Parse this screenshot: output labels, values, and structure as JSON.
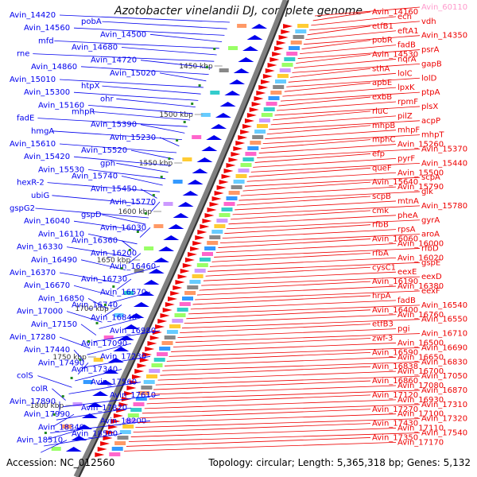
{
  "title": "Azotobacter vinelandii DJ, complete genome",
  "footer": {
    "accession_label": "Accession:",
    "accession_value": "NC_012560",
    "topology_label": "Topology:",
    "topology_value": "circular",
    "length_label": "Length:",
    "length_value": "5,365,318 bp",
    "genes_label": "Genes:",
    "genes_value": "5,132"
  },
  "colors": {
    "left_strand": "#0000ee",
    "right_strand": "#ee0000",
    "backbone": "#808080",
    "tick_marker": "#228b22",
    "faded_label": "#ff99cc"
  },
  "scale_labels": [
    "1450 kbp",
    "1500 kbp",
    "1550 kbp",
    "1600 kbp",
    "1650 kbp",
    "1700 kbp",
    "1750 kbp",
    "1800 kbp"
  ],
  "left_genes": [
    "Avin_14420",
    "pobA",
    "Avin_14560",
    "Avin_14500",
    "mfd",
    "Avin_14680",
    "rne",
    "Avin_14720",
    "Avin_14860",
    "Avin_15020",
    "Avin_15010",
    "htpX",
    "Avin_15300",
    "ohr",
    "Avin_15160",
    "mhpR",
    "fadE",
    "Avin_15390",
    "hmgA",
    "Avin_15230",
    "Avin_15610",
    "Avin_15520",
    "Avin_15420",
    "gph",
    "Avin_15530",
    "Avin_15740",
    "hexR-2",
    "Avin_15450",
    "ubiG",
    "Avin_15770",
    "gspG2",
    "gspD",
    "Avin_16040",
    "Avin_16030",
    "Avin_16110",
    "Avin_16360",
    "Avin_16330",
    "Avin_16200",
    "Avin_16490",
    "Avin_16460",
    "Avin_16370",
    "Avin_16730",
    "Avin_16670",
    "Avin_16570",
    "Avin_16850",
    "Avin_16740",
    "Avin_17000",
    "Avin_16840",
    "Avin_17150",
    "Avin_16980",
    "Avin_17280",
    "Avin_17090",
    "Avin_17440",
    "Avin_17230",
    "Avin_17490",
    "Avin_17340",
    "colS",
    "Avin_17560",
    "colR",
    "Avin_17610",
    "Avin_17890",
    "Avin_17820",
    "Avin_17990",
    "Avin_18200",
    "Avin_18340",
    "Avin_18500",
    "Avin_18510"
  ],
  "right_genes": [
    "Avin_60110",
    "Avin_14160",
    "ech",
    "vdh",
    "etfB1",
    "eftA1",
    "Avin_14350",
    "pobR",
    "fadB",
    "psrA",
    "Avin_14530",
    "nqrA",
    "gapB",
    "sthA",
    "lolC",
    "lolD",
    "apbE",
    "lpxK",
    "ptpA",
    "exbB",
    "rpmF",
    "plsX",
    "rluC",
    "pilZ",
    "acpP",
    "mhpB",
    "mhpF",
    "mhpT",
    "mphC",
    "Avin_15260",
    "Avin_15370",
    "efp",
    "pyrF",
    "Avin_15440",
    "queF",
    "Avin_15500",
    "scpA",
    "Avin_15640",
    "Avin_15790",
    "glk",
    "scpB",
    "mtnA",
    "Avin_15780",
    "cmk",
    "pheA",
    "gyrA",
    "rfbB",
    "rpsA",
    "aroA",
    "Avin_16060",
    "Avin_16000",
    "rfbD",
    "rfbA",
    "Avin_16020",
    "gspE",
    "cysC1",
    "eexE",
    "eexD",
    "Avin_16190",
    "Avin_16380",
    "eexF",
    "hrpA",
    "fadB",
    "Avin_16540",
    "Avin_16400",
    "Avin_16760",
    "Avin_16550",
    "etfB3",
    "pgi",
    "Avin_16710",
    "zwf-3",
    "Avin_16500",
    "Avin_16690",
    "Avin_16590",
    "Avin_16650",
    "Avin_16830",
    "Avin_16838",
    "Avin_16700",
    "Avin_17050",
    "Avin_16860",
    "Avin_17080",
    "Avin_16870",
    "Avin_17120",
    "Avin_16930",
    "Avin_17310",
    "Avin_17270",
    "Avin_17100",
    "Avin_17320",
    "Avin_17430",
    "Avin_17110",
    "Avin_17540",
    "Avin_17350",
    "Avin_17170"
  ]
}
